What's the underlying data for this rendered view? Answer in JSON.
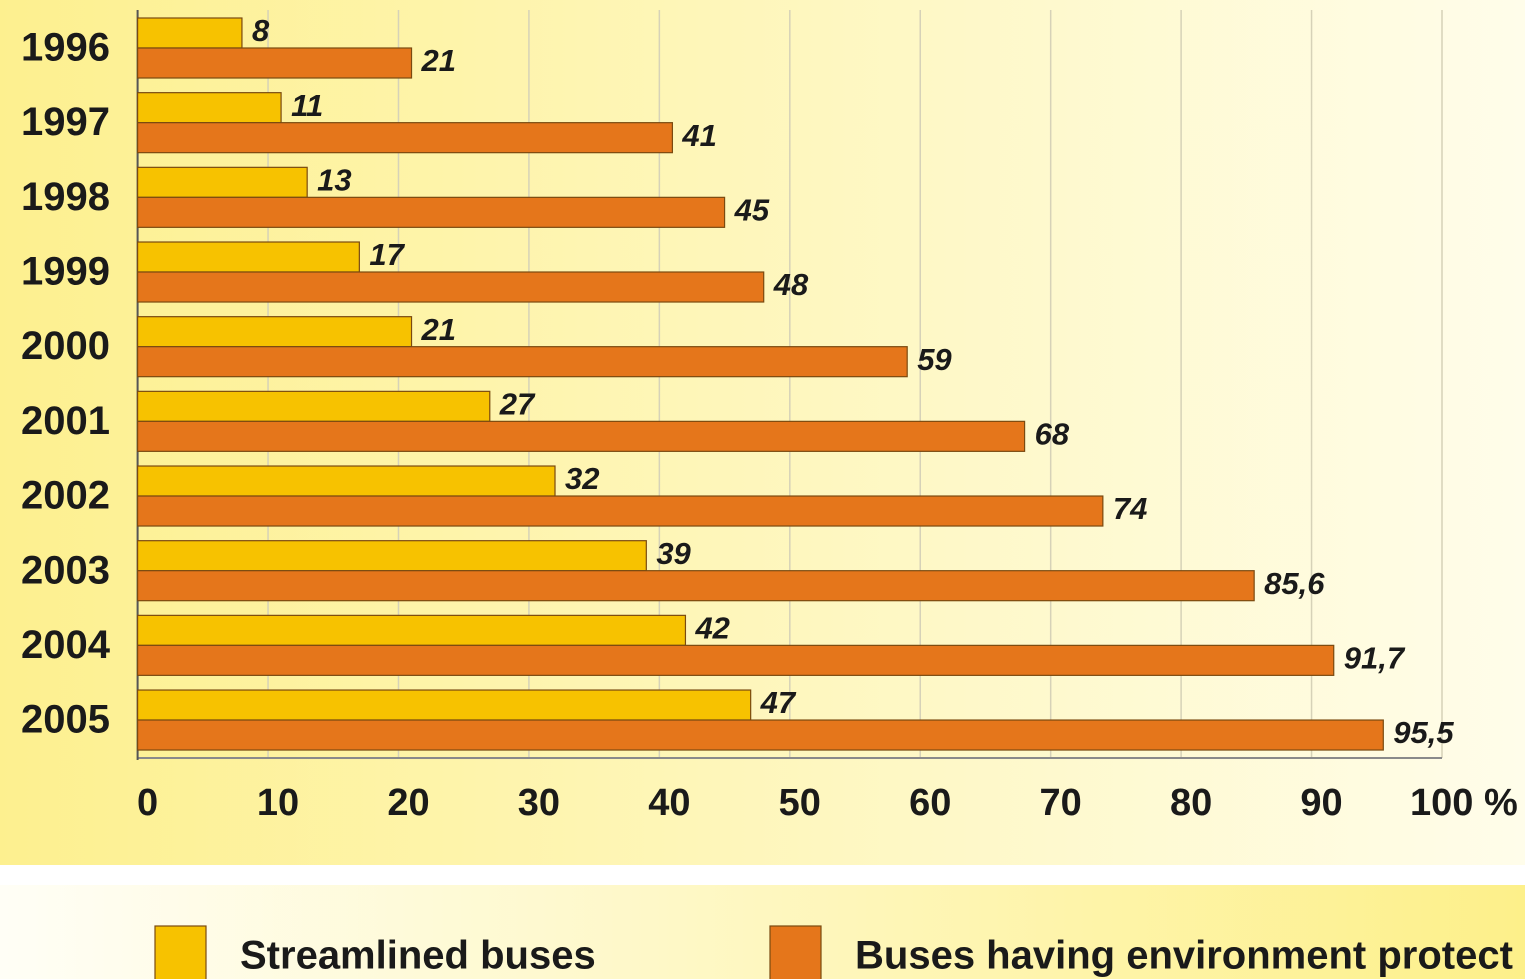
{
  "chart_data": {
    "type": "bar",
    "orientation": "horizontal",
    "categories": [
      "1996",
      "1997",
      "1998",
      "1999",
      "2000",
      "2001",
      "2002",
      "2003",
      "2004",
      "2005"
    ],
    "series": [
      {
        "name": "Streamlined buses",
        "color": "#f7c200",
        "values": [
          8,
          11,
          13,
          17,
          21,
          27,
          32,
          39,
          42,
          47
        ]
      },
      {
        "name": "Buses having environment protect",
        "color": "#e5761b",
        "values": [
          21,
          41,
          45,
          48,
          59,
          68,
          74,
          85.6,
          91.7,
          95.5
        ],
        "value_labels": [
          "21",
          "41",
          "45",
          "48",
          "59",
          "68",
          "74",
          "85,6",
          "91,7",
          "95,5"
        ]
      }
    ],
    "xlim": [
      0,
      100
    ],
    "xticks": [
      0,
      10,
      20,
      30,
      40,
      50,
      60,
      70,
      80,
      90,
      {
        "value": 100,
        "label": "100 %"
      }
    ],
    "grid": true
  }
}
